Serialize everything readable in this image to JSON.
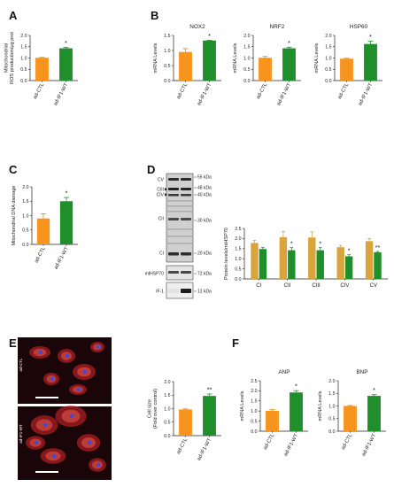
{
  "colors": {
    "orange": "#F7941D",
    "green": "#1E8F2B",
    "ochre": "#D9A43C",
    "errbar": "#d4a24a",
    "axis": "#222222",
    "micro_bg": "#1a0508",
    "micro_red": "#e0282c",
    "nuclei": "#3b4be0"
  },
  "panels": {
    "A": "A",
    "B": "B",
    "C": "C",
    "D": "D",
    "E": "E",
    "F": "F"
  },
  "groups": [
    "ad-CTL",
    "ad-IF1-WT"
  ],
  "chart_data": [
    {
      "id": "A",
      "type": "bar",
      "title": "",
      "ylabel": "Mitochondrial\nROS production/μg prot",
      "categories": [
        "ad-CTL",
        "ad-IF1-WT"
      ],
      "values": [
        1.01,
        1.43
      ],
      "errors": [
        0.02,
        0.04
      ],
      "ylim": [
        0,
        2.0
      ],
      "yticks": [
        "0.0",
        "0.5",
        "1.0",
        "1.5",
        "2.0"
      ],
      "sig": [
        "",
        "*"
      ]
    },
    {
      "id": "B1",
      "type": "bar",
      "title": "NOX2",
      "ylabel": "mRNA Levels",
      "categories": [
        "ad-CTL",
        "ad-IF1-WT"
      ],
      "values": [
        0.95,
        1.33
      ],
      "errors": [
        0.11,
        0.01
      ],
      "ylim": [
        0,
        1.5
      ],
      "yticks": [
        "0.0",
        "0.5",
        "1.0",
        "1.5"
      ],
      "sig": [
        "",
        "*"
      ]
    },
    {
      "id": "B2",
      "type": "bar",
      "title": "NRF2",
      "ylabel": "mRNA Levels",
      "categories": [
        "ad-CTL",
        "ad-IF1-WT"
      ],
      "values": [
        1.01,
        1.43
      ],
      "errors": [
        0.06,
        0.05
      ],
      "ylim": [
        0,
        2.0
      ],
      "yticks": [
        "0.0",
        "0.5",
        "1.0",
        "1.5",
        "2.0"
      ],
      "sig": [
        "",
        "*"
      ]
    },
    {
      "id": "B3",
      "type": "bar",
      "title": "HSP60",
      "ylabel": "mRNA Levels",
      "categories": [
        "ad-CTL",
        "ad-IF1-WT"
      ],
      "values": [
        0.97,
        1.62
      ],
      "errors": [
        0.02,
        0.12
      ],
      "ylim": [
        0,
        2.0
      ],
      "yticks": [
        "0.0",
        "0.5",
        "1.0",
        "1.5",
        "2.0"
      ],
      "sig": [
        "",
        "*"
      ]
    },
    {
      "id": "C",
      "type": "bar",
      "title": "",
      "ylabel": "Mitochondrial DNA damage",
      "categories": [
        "ad-CTL",
        "ad-IF1-WT"
      ],
      "values": [
        0.9,
        1.5
      ],
      "errors": [
        0.16,
        0.13
      ],
      "ylim": [
        0,
        2.0
      ],
      "yticks": [
        "0.0",
        "0.5",
        "1.0",
        "1.5",
        "2.0"
      ],
      "sig": [
        "",
        "*"
      ]
    },
    {
      "id": "D",
      "type": "bar",
      "title": "",
      "ylabel": "Protein levels/mtHSP70",
      "categories": [
        "CI",
        "CII",
        "CIII",
        "CIV",
        "CV"
      ],
      "series": [
        {
          "values": [
            1.78,
            2.07,
            2.05,
            1.57,
            1.87
          ],
          "errors": [
            0.13,
            0.28,
            0.28,
            0.09,
            0.13
          ]
        },
        {
          "values": [
            1.48,
            1.42,
            1.42,
            1.12,
            1.32
          ],
          "errors": [
            0.07,
            0.13,
            0.13,
            0.08,
            0.04
          ]
        }
      ],
      "ylim": [
        0,
        2.5
      ],
      "yticks": [
        "0.0",
        "0.5",
        "1.0",
        "1.5",
        "2.0",
        "2.5"
      ],
      "sig": [
        "",
        "*",
        "*",
        "*",
        "**"
      ]
    },
    {
      "id": "E",
      "type": "bar",
      "title": "",
      "ylabel": "Cell size\n(Fold over control)",
      "categories": [
        "ad-CTL",
        "ad-IF1-WT"
      ],
      "values": [
        0.97,
        1.47
      ],
      "errors": [
        0.02,
        0.07
      ],
      "ylim": [
        0,
        2.0
      ],
      "yticks": [
        "0.0",
        "0.5",
        "1.0",
        "1.5",
        "2.0"
      ],
      "sig": [
        "",
        "**"
      ]
    },
    {
      "id": "F1",
      "type": "bar",
      "title": "ANP",
      "ylabel": "mRNA Levels",
      "categories": [
        "ad-CTL",
        "ad-IF1-WT"
      ],
      "values": [
        1.01,
        1.92
      ],
      "errors": [
        0.06,
        0.09
      ],
      "ylim": [
        0,
        2.5
      ],
      "yticks": [
        "0.0",
        "0.5",
        "1.0",
        "1.5",
        "2.0",
        "2.5"
      ],
      "sig": [
        "",
        "*"
      ]
    },
    {
      "id": "F2",
      "type": "bar",
      "title": "BNP",
      "ylabel": "mRNA Levels",
      "categories": [
        "ad-CTL",
        "ad-IF1-WT"
      ],
      "values": [
        1.0,
        1.4
      ],
      "errors": [
        0.02,
        0.05
      ],
      "ylim": [
        0,
        2.0
      ],
      "yticks": [
        "0.0",
        "0.5",
        "1.0",
        "1.5",
        "2.0"
      ],
      "sig": [
        "",
        "*"
      ]
    }
  ],
  "blot": {
    "rows": [
      {
        "label": "CV",
        "mw": "55 kDa"
      },
      {
        "label": "CIII",
        "mw": "48 kDa"
      },
      {
        "label": "CIV",
        "mw": "40 kDa"
      },
      {
        "label": "CII",
        "mw": "30 kDa"
      },
      {
        "label": "CI",
        "mw": "20 kDa"
      },
      {
        "label": "mtHSP70",
        "mw": "72 kDa"
      },
      {
        "label": "IF-1",
        "mw": "12 kDa"
      }
    ]
  },
  "micro": {
    "top_label": "ad-CTL",
    "bottom_label": "ad-IF1-WT"
  }
}
